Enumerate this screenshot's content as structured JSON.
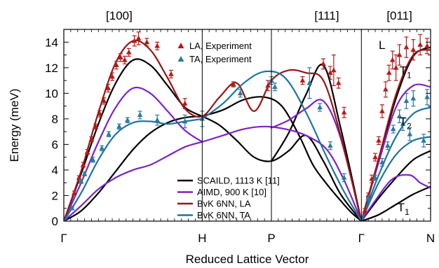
{
  "chart_data": {
    "type": "line",
    "xlabel": "Reduced Lattice Vector",
    "ylabel": "Energy (meV)",
    "ylim": [
      0,
      15
    ],
    "yticks": [
      0,
      2,
      4,
      6,
      8,
      10,
      12,
      14
    ],
    "y_minor_step": 1,
    "xlim": [
      0,
      5.3
    ],
    "bottom_ticks": [
      {
        "x": 0.0,
        "label": "Γ"
      },
      {
        "x": 2.0,
        "label": "H"
      },
      {
        "x": 3.0,
        "label": "P"
      },
      {
        "x": 4.3,
        "label": "Γ"
      },
      {
        "x": 5.3,
        "label": "N"
      }
    ],
    "top_ticks": [
      {
        "x": 0.8,
        "label": "[100]"
      },
      {
        "x": 3.8,
        "label": "[111]"
      },
      {
        "x": 4.85,
        "label": "[011]"
      }
    ],
    "vertical_lines": [
      2.0,
      3.0,
      4.3
    ],
    "grid": false,
    "legend_top": {
      "position": "top-center",
      "entries": [
        {
          "label": "LA, Experiment",
          "marker": "triangle",
          "color": "#b51a1a"
        },
        {
          "label": "TA, Experiment",
          "marker": "triangle",
          "color": "#2a7aa0"
        }
      ]
    },
    "legend_bottom": {
      "position": "bottom-center",
      "entries": [
        {
          "label": "SCAILD, 1113 K [11]",
          "color": "#000000"
        },
        {
          "label": "AIMD, 900 K [10]",
          "color": "#7b22c9"
        },
        {
          "label": "BvK 6NN, LA",
          "color": "#9a1515"
        },
        {
          "label": "BvK 6NN, TA",
          "color": "#1e73a0"
        }
      ]
    },
    "annotations": [
      {
        "text": "L",
        "x": 4.55,
        "y": 13.8
      },
      {
        "text": "T",
        "sub": "1",
        "x": 4.85,
        "y": 11.8
      },
      {
        "text": "T",
        "sub": "2",
        "x": 4.85,
        "y": 7.8
      },
      {
        "text": "T",
        "sub": "1",
        "x": 4.82,
        "y": 1.1
      }
    ],
    "series": [
      {
        "name": "SCAILD, 1113 K [11]",
        "color": "#000000",
        "width": 2.2,
        "x": [
          0,
          0.25,
          0.5,
          0.75,
          1.0,
          1.25,
          1.5,
          1.75,
          2.0
        ],
        "y": [
          0,
          3.7,
          7.6,
          10.8,
          12.6,
          12.2,
          10.6,
          8.9,
          8.2
        ]
      },
      {
        "name": "SCAILD, 1113 K [11]",
        "color": "#000000",
        "width": 2.2,
        "x": [
          0,
          0.25,
          0.5,
          0.75,
          1.0,
          1.25,
          1.5,
          1.75,
          2.0
        ],
        "y": [
          0,
          0.8,
          2.2,
          3.9,
          5.6,
          6.9,
          7.7,
          8.1,
          8.2
        ]
      },
      {
        "name": "SCAILD, 1113 K [11]",
        "color": "#000000",
        "width": 2.2,
        "x": [
          2.0,
          2.25,
          2.5,
          2.75,
          3.0,
          3.25,
          3.5,
          3.75,
          4.0,
          4.3
        ],
        "y": [
          8.2,
          7.5,
          6.3,
          5.0,
          4.7,
          5.5,
          6.7,
          4.7,
          2.1,
          0
        ]
      },
      {
        "name": "SCAILD, 1113 K [11]",
        "color": "#000000",
        "width": 2.2,
        "x": [
          2.0,
          2.3,
          2.6,
          2.9,
          3.15,
          3.4,
          3.6,
          3.8,
          4.0,
          4.15,
          4.3
        ],
        "y": [
          8.2,
          8.7,
          9.5,
          9.7,
          9.0,
          6.7,
          4.4,
          2.9,
          1.6,
          0.7,
          0
        ]
      },
      {
        "name": "SCAILD, 1113 K [11]",
        "color": "#000000",
        "width": 2.2,
        "x": [
          3.0,
          3.25,
          3.5,
          3.75,
          4.0,
          4.3
        ],
        "y": [
          4.7,
          6.9,
          9.9,
          12.2,
          7.3,
          0
        ]
      },
      {
        "name": "SCAILD, 1113 K [11]",
        "color": "#000000",
        "width": 2.2,
        "x": [
          4.3,
          4.55,
          4.8,
          5.05,
          5.3
        ],
        "y": [
          0,
          4.8,
          9.6,
          12.9,
          13.6
        ]
      },
      {
        "name": "SCAILD, 1113 K [11]",
        "color": "#000000",
        "width": 2.2,
        "x": [
          4.3,
          4.55,
          4.8,
          5.05,
          5.3
        ],
        "y": [
          0,
          1.8,
          3.4,
          4.8,
          5.5
        ]
      },
      {
        "name": "SCAILD, 1113 K [11]",
        "color": "#000000",
        "width": 2.2,
        "x": [
          4.3,
          4.55,
          4.8,
          5.05,
          5.3
        ],
        "y": [
          0,
          0.5,
          1.3,
          2.1,
          2.7
        ]
      },
      {
        "name": "AIMD, 900 K [10]",
        "color": "#7b22c9",
        "width": 2.2,
        "x": [
          0,
          0.25,
          0.5,
          0.75,
          1.0,
          1.25,
          1.5,
          1.75,
          2.0
        ],
        "y": [
          0,
          3.0,
          6.2,
          8.9,
          10.4,
          10.0,
          8.6,
          7.1,
          6.2
        ]
      },
      {
        "name": "AIMD, 900 K [10]",
        "color": "#7b22c9",
        "width": 2.2,
        "x": [
          0,
          0.25,
          0.5,
          0.75,
          1.0,
          1.25,
          1.5,
          1.75,
          2.0
        ],
        "y": [
          0,
          1.2,
          2.5,
          3.4,
          4.0,
          4.4,
          5.1,
          5.8,
          6.2
        ]
      },
      {
        "name": "AIMD, 900 K [10]",
        "color": "#7b22c9",
        "width": 2.2,
        "x": [
          2.0,
          2.3,
          2.6,
          2.9,
          3.2,
          3.5,
          3.8,
          4.05,
          4.3
        ],
        "y": [
          6.2,
          6.7,
          7.2,
          7.4,
          7.2,
          6.7,
          5.6,
          3.2,
          0
        ]
      },
      {
        "name": "AIMD, 900 K [10]",
        "color": "#7b22c9",
        "width": 2.2,
        "x": [
          3.0,
          3.25,
          3.5,
          3.75,
          4.0,
          4.3
        ],
        "y": [
          7.3,
          7.9,
          8.8,
          9.4,
          6.5,
          0
        ]
      },
      {
        "name": "AIMD, 900 K [10]",
        "color": "#7b22c9",
        "width": 2.2,
        "x": [
          4.3,
          4.55,
          4.8,
          5.05,
          5.3
        ],
        "y": [
          0,
          4.6,
          8.9,
          10.6,
          10.5
        ]
      },
      {
        "name": "AIMD, 900 K [10]",
        "color": "#7b22c9",
        "width": 2.2,
        "x": [
          4.3,
          4.5,
          4.75,
          5.0,
          5.15,
          5.3
        ],
        "y": [
          0,
          1.6,
          3.3,
          3.6,
          3.0,
          2.6
        ]
      },
      {
        "name": "BvK 6NN, LA",
        "color": "#9a1515",
        "width": 2.2,
        "x": [
          0,
          0.25,
          0.5,
          0.75,
          1.0,
          1.25,
          1.5,
          1.75,
          2.0,
          2.25,
          2.5,
          2.75,
          3.0,
          3.25,
          3.5,
          3.75,
          4.0,
          4.3
        ],
        "y": [
          0,
          3.9,
          8.5,
          12.4,
          14.1,
          13.4,
          11.2,
          8.8,
          8.2,
          9.7,
          10.8,
          8.6,
          11.0,
          11.8,
          11.6,
          11.0,
          6.7,
          0
        ]
      },
      {
        "name": "BvK 6NN, LA",
        "color": "#9a1515",
        "width": 2.2,
        "x": [
          4.3,
          4.55,
          4.8,
          5.05,
          5.3
        ],
        "y": [
          0,
          4.9,
          9.9,
          13.0,
          13.4
        ]
      },
      {
        "name": "BvK 6NN, TA",
        "color": "#1e73a0",
        "width": 2.2,
        "x": [
          0,
          0.25,
          0.5,
          0.75,
          1.0,
          1.25,
          1.5,
          1.75,
          2.0
        ],
        "y": [
          0,
          2.2,
          4.8,
          6.8,
          7.7,
          7.8,
          7.6,
          7.8,
          8.0
        ]
      },
      {
        "name": "BvK 6NN, TA",
        "color": "#1e73a0",
        "width": 2.2,
        "x": [
          2.0,
          2.3,
          2.6,
          2.9,
          3.2,
          3.5,
          3.8,
          4.05,
          4.3
        ],
        "y": [
          8.0,
          9.2,
          10.8,
          11.7,
          11.2,
          8.5,
          5.0,
          2.3,
          0
        ]
      },
      {
        "name": "BvK 6NN, TA",
        "color": "#1e73a0",
        "width": 2.2,
        "x": [
          4.3,
          4.55,
          4.8,
          5.05,
          5.3
        ],
        "y": [
          0,
          3.6,
          6.6,
          8.4,
          8.9
        ]
      },
      {
        "name": "BvK 6NN, TA",
        "color": "#1e73a0",
        "width": 2.2,
        "x": [
          4.3,
          4.55,
          4.8,
          5.05,
          5.3
        ],
        "y": [
          0,
          3.0,
          5.2,
          6.3,
          6.6
        ]
      }
    ],
    "experiment": [
      {
        "name": "LA, Experiment",
        "color": "#b51a1a",
        "points": [
          [
            0.15,
            2.2,
            0.15
          ],
          [
            0.22,
            3.4,
            0.15
          ],
          [
            0.28,
            4.4,
            0.2
          ],
          [
            0.34,
            5.4,
            0.2
          ],
          [
            0.4,
            6.4,
            0.2
          ],
          [
            0.46,
            7.4,
            0.2
          ],
          [
            0.52,
            8.4,
            0.25
          ],
          [
            0.58,
            9.4,
            0.25
          ],
          [
            0.64,
            10.4,
            0.3
          ],
          [
            0.7,
            11.3,
            0.3
          ],
          [
            0.76,
            12.2,
            0.3
          ],
          [
            0.82,
            12.8,
            0.3
          ],
          [
            0.88,
            12.6,
            0.3
          ],
          [
            0.94,
            13.2,
            0.3
          ],
          [
            1.02,
            14.1,
            0.4
          ],
          [
            1.08,
            14.3,
            0.5
          ],
          [
            1.2,
            14.0,
            0.3
          ],
          [
            1.35,
            13.7,
            0.3
          ],
          [
            1.55,
            11.5,
            0.3
          ],
          [
            1.75,
            9.2,
            0.4
          ],
          [
            2.45,
            10.7,
            0.2
          ],
          [
            2.95,
            10.6,
            0.4
          ],
          [
            3.45,
            11.0,
            0.3
          ],
          [
            3.75,
            12.3,
            0.4
          ],
          [
            3.85,
            11.6,
            0.5
          ],
          [
            3.9,
            11.8,
            1.2
          ],
          [
            3.97,
            10.8,
            0.4
          ],
          [
            4.05,
            8.5,
            0.4
          ],
          [
            4.35,
            0.8,
            0.2
          ],
          [
            4.4,
            2.0,
            0.2
          ],
          [
            4.45,
            3.3,
            0.3
          ],
          [
            4.5,
            5.0,
            0.3
          ],
          [
            4.55,
            6.3,
            0.3
          ],
          [
            4.6,
            8.6,
            0.5
          ],
          [
            4.65,
            10.3,
            0.6
          ],
          [
            4.7,
            11.6,
            0.6
          ],
          [
            4.75,
            12.6,
            0.7
          ],
          [
            4.8,
            12.0,
            1.0
          ],
          [
            4.85,
            13.0,
            0.8
          ],
          [
            4.95,
            13.6,
            0.8
          ],
          [
            5.05,
            13.4,
            0.8
          ],
          [
            5.15,
            13.8,
            0.8
          ],
          [
            5.25,
            13.7,
            0.6
          ]
        ]
      },
      {
        "name": "TA, Experiment",
        "color": "#2a7aa0",
        "points": [
          [
            0.12,
            1.0,
            0.1
          ],
          [
            0.25,
            3.1,
            0.15
          ],
          [
            0.3,
            3.7,
            0.15
          ],
          [
            0.42,
            4.8,
            0.2
          ],
          [
            0.55,
            5.7,
            0.2
          ],
          [
            0.65,
            6.8,
            0.2
          ],
          [
            0.8,
            7.4,
            0.2
          ],
          [
            0.92,
            7.9,
            0.2
          ],
          [
            1.1,
            8.3,
            0.3
          ],
          [
            1.35,
            7.9,
            0.4
          ],
          [
            1.75,
            7.8,
            0.5
          ],
          [
            2.0,
            8.0,
            0.6
          ],
          [
            2.55,
            10.0,
            0.3
          ],
          [
            3.0,
            11.0,
            0.3
          ],
          [
            3.05,
            10.5,
            0.3
          ],
          [
            3.55,
            10.8,
            1.2
          ],
          [
            3.7,
            8.9,
            0.3
          ],
          [
            3.85,
            5.9,
            0.3
          ],
          [
            4.05,
            3.4,
            0.3
          ],
          [
            4.4,
            1.8,
            0.2
          ],
          [
            4.5,
            3.4,
            0.2
          ],
          [
            4.6,
            4.6,
            0.3
          ],
          [
            4.68,
            5.9,
            0.3
          ],
          [
            4.76,
            7.2,
            0.3
          ],
          [
            4.85,
            8.2,
            0.5
          ],
          [
            4.95,
            9.4,
            0.6
          ],
          [
            5.05,
            9.6,
            0.6
          ],
          [
            5.25,
            9.7,
            0.6
          ],
          [
            4.9,
            7.6,
            0.5
          ],
          [
            5.0,
            6.8,
            0.5
          ],
          [
            5.2,
            6.3,
            0.5
          ]
        ]
      }
    ]
  }
}
